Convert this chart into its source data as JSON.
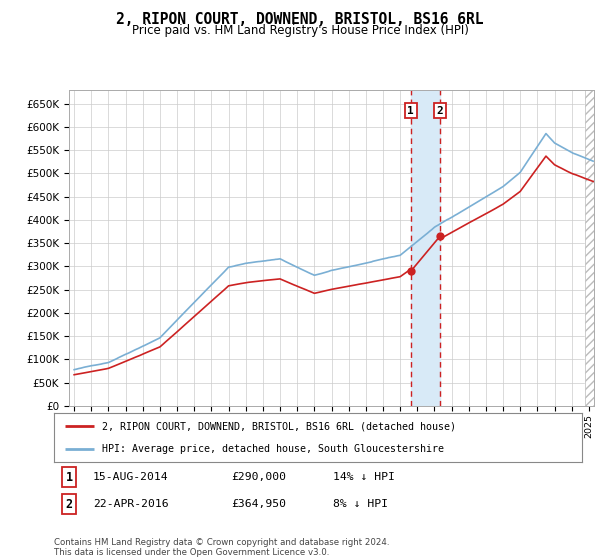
{
  "title": "2, RIPON COURT, DOWNEND, BRISTOL, BS16 6RL",
  "subtitle": "Price paid vs. HM Land Registry's House Price Index (HPI)",
  "ylim": [
    0,
    680000
  ],
  "yticks": [
    0,
    50000,
    100000,
    150000,
    200000,
    250000,
    300000,
    350000,
    400000,
    450000,
    500000,
    550000,
    600000,
    650000
  ],
  "ytick_labels": [
    "£0",
    "£50K",
    "£100K",
    "£150K",
    "£200K",
    "£250K",
    "£300K",
    "£350K",
    "£400K",
    "£450K",
    "£500K",
    "£550K",
    "£600K",
    "£650K"
  ],
  "hpi_color": "#7aafd4",
  "price_color": "#cc2222",
  "transaction1_date": 2014.62,
  "transaction2_date": 2016.31,
  "transaction1_price": 290000,
  "transaction2_price": 364950,
  "legend_line1": "2, RIPON COURT, DOWNEND, BRISTOL, BS16 6RL (detached house)",
  "legend_line2": "HPI: Average price, detached house, South Gloucestershire",
  "table_row1": [
    "1",
    "15-AUG-2014",
    "£290,000",
    "14% ↓ HPI"
  ],
  "table_row2": [
    "2",
    "22-APR-2016",
    "£364,950",
    "8% ↓ HPI"
  ],
  "footnote": "Contains HM Land Registry data © Crown copyright and database right 2024.\nThis data is licensed under the Open Government Licence v3.0.",
  "background_color": "#ffffff",
  "grid_color": "#cccccc",
  "shaded_region_color": "#d8eaf7",
  "xlim_start": 1994.7,
  "xlim_end": 2025.3
}
